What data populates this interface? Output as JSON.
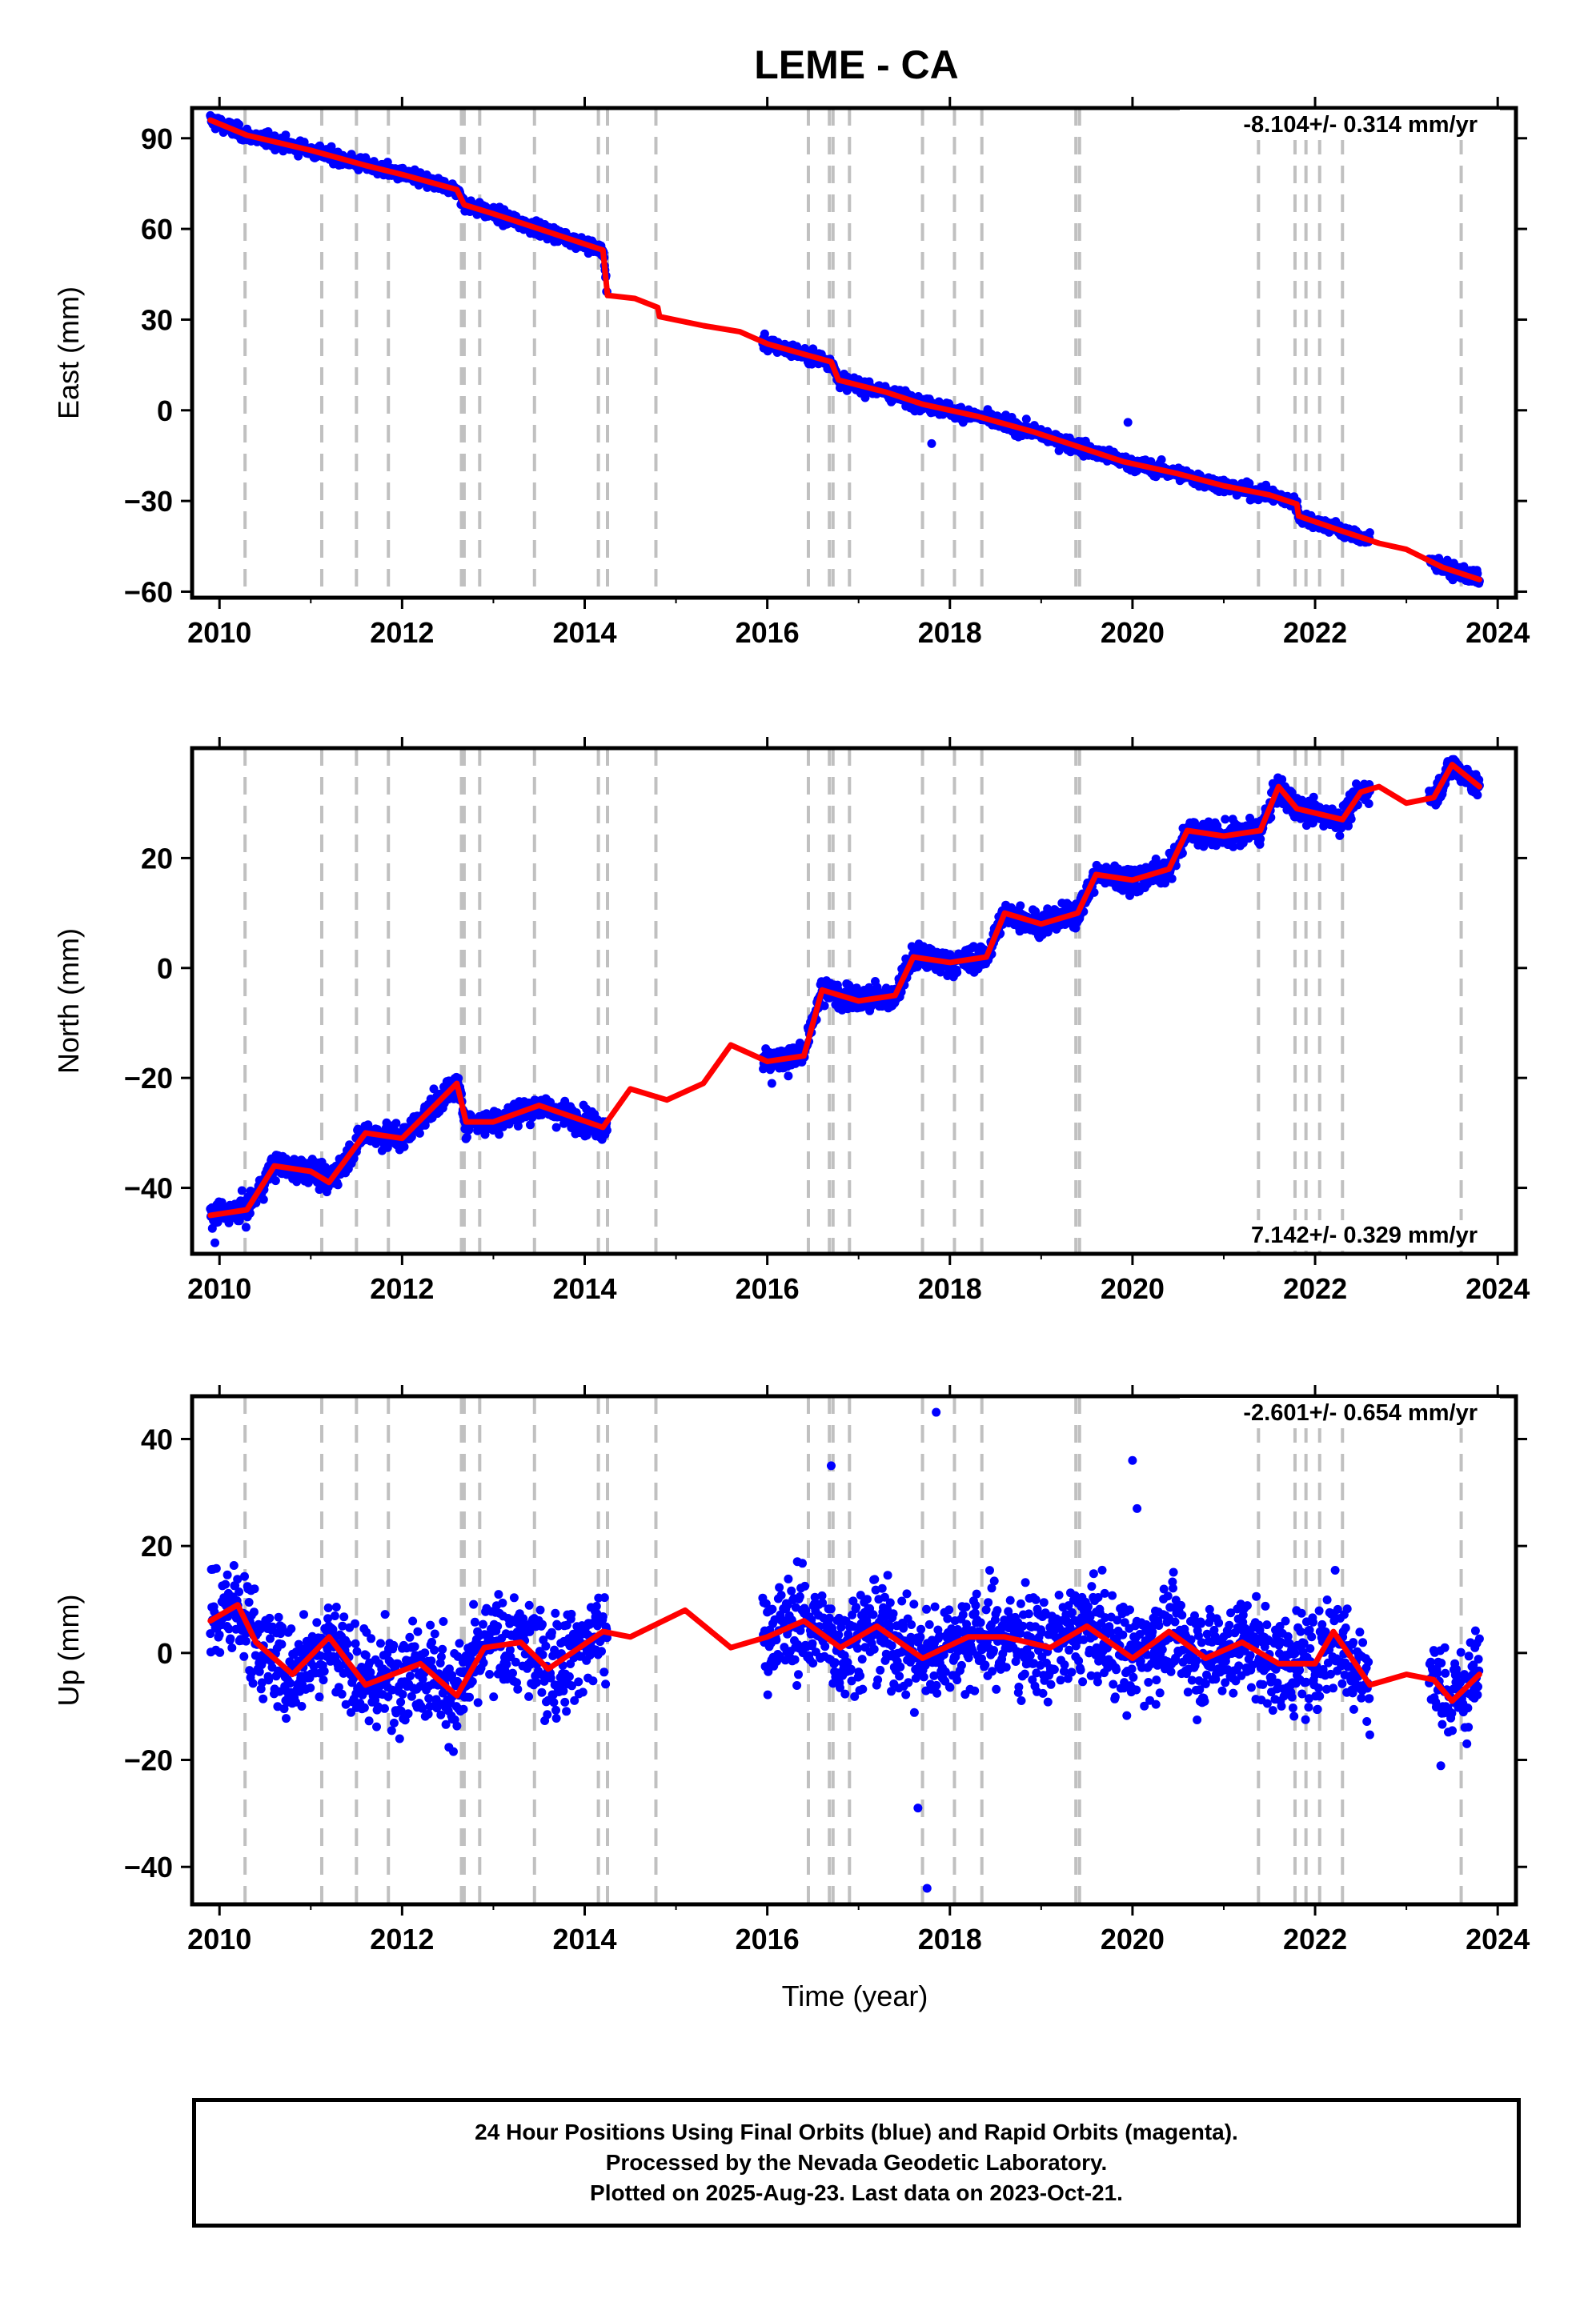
{
  "title": "LEME - CA",
  "x_axis_label": "Time (year)",
  "colors": {
    "points": "#0000ff",
    "model": "#ff0000",
    "events": "#c0c0c0",
    "frame": "#000000"
  },
  "caption": {
    "line1": "24 Hour Positions Using Final Orbits (blue) and Rapid Orbits (magenta).",
    "line2": "Processed by the Nevada Geodetic Laboratory.",
    "line3": "Plotted on 2025-Aug-23. Last data on 2023-Oct-21."
  },
  "chart_data": [
    {
      "type": "scatter",
      "component": "east",
      "ylabel": "East (mm)",
      "velocity_label": "-8.104+/- 0.314 mm/yr",
      "velocity_label_position": "top-right",
      "xlim": [
        2009.7,
        2024.2
      ],
      "ylim": [
        -62,
        100
      ],
      "xticks": [
        2010,
        2012,
        2014,
        2016,
        2018,
        2020,
        2022,
        2024
      ],
      "yticks": [
        -60,
        -30,
        0,
        30,
        60,
        90
      ],
      "data_segments": [
        [
          2009.9,
          2014.25
        ],
        [
          2015.95,
          2022.6
        ],
        [
          2023.25,
          2023.8
        ]
      ],
      "model_series": {
        "name": "model",
        "color": "#ff0000",
        "x": [
          2009.9,
          2010.3,
          2011.0,
          2011.6,
          2012.0,
          2012.6,
          2012.68,
          2013.0,
          2013.5,
          2014.2,
          2014.25,
          2014.55,
          2014.8,
          2014.82,
          2015.3,
          2015.7,
          2016.0,
          2016.7,
          2016.78,
          2017.3,
          2017.7,
          2018.3,
          2018.9,
          2019.4,
          2019.9,
          2020.5,
          2021.0,
          2021.5,
          2021.8,
          2021.82,
          2022.3,
          2022.7,
          2023.0,
          2023.4,
          2023.8
        ],
        "y": [
          96,
          91,
          86,
          81,
          78,
          73,
          68,
          65,
          60,
          53,
          38,
          37,
          34,
          31,
          28,
          26,
          22,
          16,
          10,
          6,
          2,
          -2,
          -7,
          -12,
          -17,
          -21,
          -25,
          -28,
          -31,
          -35,
          -40,
          -44,
          -46,
          -52,
          -56
        ]
      },
      "points_series": {
        "name": "daily positions",
        "color": "#0000ff",
        "noise_sigma": 1.6,
        "outliers": [
          [
            2017.8,
            -11
          ],
          [
            2019.95,
            -4
          ]
        ]
      }
    },
    {
      "type": "scatter",
      "component": "north",
      "ylabel": "North (mm)",
      "velocity_label": "7.142+/- 0.329 mm/yr",
      "velocity_label_position": "bottom-right",
      "xlim": [
        2009.7,
        2024.2
      ],
      "ylim": [
        -52,
        40
      ],
      "xticks": [
        2010,
        2012,
        2014,
        2016,
        2018,
        2020,
        2022,
        2024
      ],
      "yticks": [
        -40,
        -20,
        0,
        20
      ],
      "data_segments": [
        [
          2009.9,
          2014.25
        ],
        [
          2015.95,
          2022.6
        ],
        [
          2023.25,
          2023.8
        ]
      ],
      "model_series": {
        "name": "model",
        "color": "#ff0000",
        "x": [
          2009.9,
          2010.3,
          2010.6,
          2011.0,
          2011.2,
          2011.6,
          2012.0,
          2012.6,
          2012.7,
          2013.0,
          2013.5,
          2014.2,
          2014.5,
          2014.9,
          2015.3,
          2015.6,
          2016.0,
          2016.4,
          2016.6,
          2017.0,
          2017.4,
          2017.6,
          2018.0,
          2018.4,
          2018.6,
          2019.0,
          2019.4,
          2019.6,
          2020.0,
          2020.4,
          2020.6,
          2021.0,
          2021.4,
          2021.6,
          2021.8,
          2022.3,
          2022.5,
          2022.7,
          2023.0,
          2023.3,
          2023.5,
          2023.8
        ],
        "y": [
          -45,
          -44,
          -36,
          -37,
          -39,
          -30,
          -31,
          -21,
          -28,
          -28,
          -25,
          -29,
          -22,
          -24,
          -21,
          -14,
          -17,
          -16,
          -4,
          -6,
          -5,
          2,
          1,
          2,
          10,
          8,
          10,
          17,
          16,
          18,
          25,
          24,
          25,
          33,
          29,
          27,
          32,
          33,
          30,
          31,
          37,
          33
        ]
      },
      "points_series": {
        "name": "daily positions",
        "color": "#0000ff",
        "noise_sigma": 1.6,
        "outliers": [
          [
            2009.95,
            -50
          ],
          [
            2016.05,
            -21
          ]
        ]
      }
    },
    {
      "type": "scatter",
      "component": "up",
      "ylabel": "Up (mm)",
      "velocity_label": "-2.601+/- 0.654 mm/yr",
      "velocity_label_position": "top-right",
      "xlim": [
        2009.7,
        2024.2
      ],
      "ylim": [
        -47,
        48
      ],
      "xticks": [
        2010,
        2012,
        2014,
        2016,
        2018,
        2020,
        2022,
        2024
      ],
      "yticks": [
        -40,
        -20,
        0,
        20,
        40
      ],
      "data_segments": [
        [
          2009.9,
          2014.25
        ],
        [
          2015.95,
          2022.6
        ],
        [
          2023.25,
          2023.8
        ]
      ],
      "model_series": {
        "name": "model",
        "color": "#ff0000",
        "x": [
          2009.9,
          2010.2,
          2010.4,
          2010.8,
          2011.2,
          2011.6,
          2012.2,
          2012.6,
          2012.9,
          2013.3,
          2013.6,
          2014.2,
          2014.5,
          2015.1,
          2015.6,
          2016.0,
          2016.4,
          2016.8,
          2017.2,
          2017.7,
          2018.2,
          2018.6,
          2019.1,
          2019.5,
          2020.0,
          2020.4,
          2020.8,
          2021.2,
          2021.6,
          2022.0,
          2022.2,
          2022.6,
          2023.0,
          2023.3,
          2023.5,
          2023.8
        ],
        "y": [
          6,
          9,
          2,
          -4,
          3,
          -6,
          -2,
          -8,
          1,
          2,
          -3,
          4,
          3,
          8,
          1,
          3,
          6,
          1,
          5,
          -1,
          3,
          3,
          1,
          5,
          -1,
          4,
          -1,
          2,
          -2,
          -2,
          4,
          -6,
          -4,
          -5,
          -9,
          -4
        ]
      },
      "points_series": {
        "name": "daily positions",
        "color": "#0000ff",
        "noise_sigma": 6.5,
        "outliers": [
          [
            2017.85,
            45
          ],
          [
            2017.75,
            -44
          ],
          [
            2017.65,
            -29
          ],
          [
            2016.7,
            35
          ],
          [
            2020.0,
            36
          ],
          [
            2020.05,
            27
          ]
        ]
      }
    }
  ],
  "event_lines": [
    2010.28,
    2011.12,
    2011.5,
    2011.85,
    2012.65,
    2012.68,
    2012.85,
    2013.45,
    2014.15,
    2014.25,
    2014.78,
    2016.45,
    2016.68,
    2016.72,
    2016.9,
    2017.7,
    2018.05,
    2018.35,
    2019.38,
    2019.42,
    2021.38,
    2021.78,
    2021.9,
    2022.05,
    2022.3,
    2023.6
  ]
}
